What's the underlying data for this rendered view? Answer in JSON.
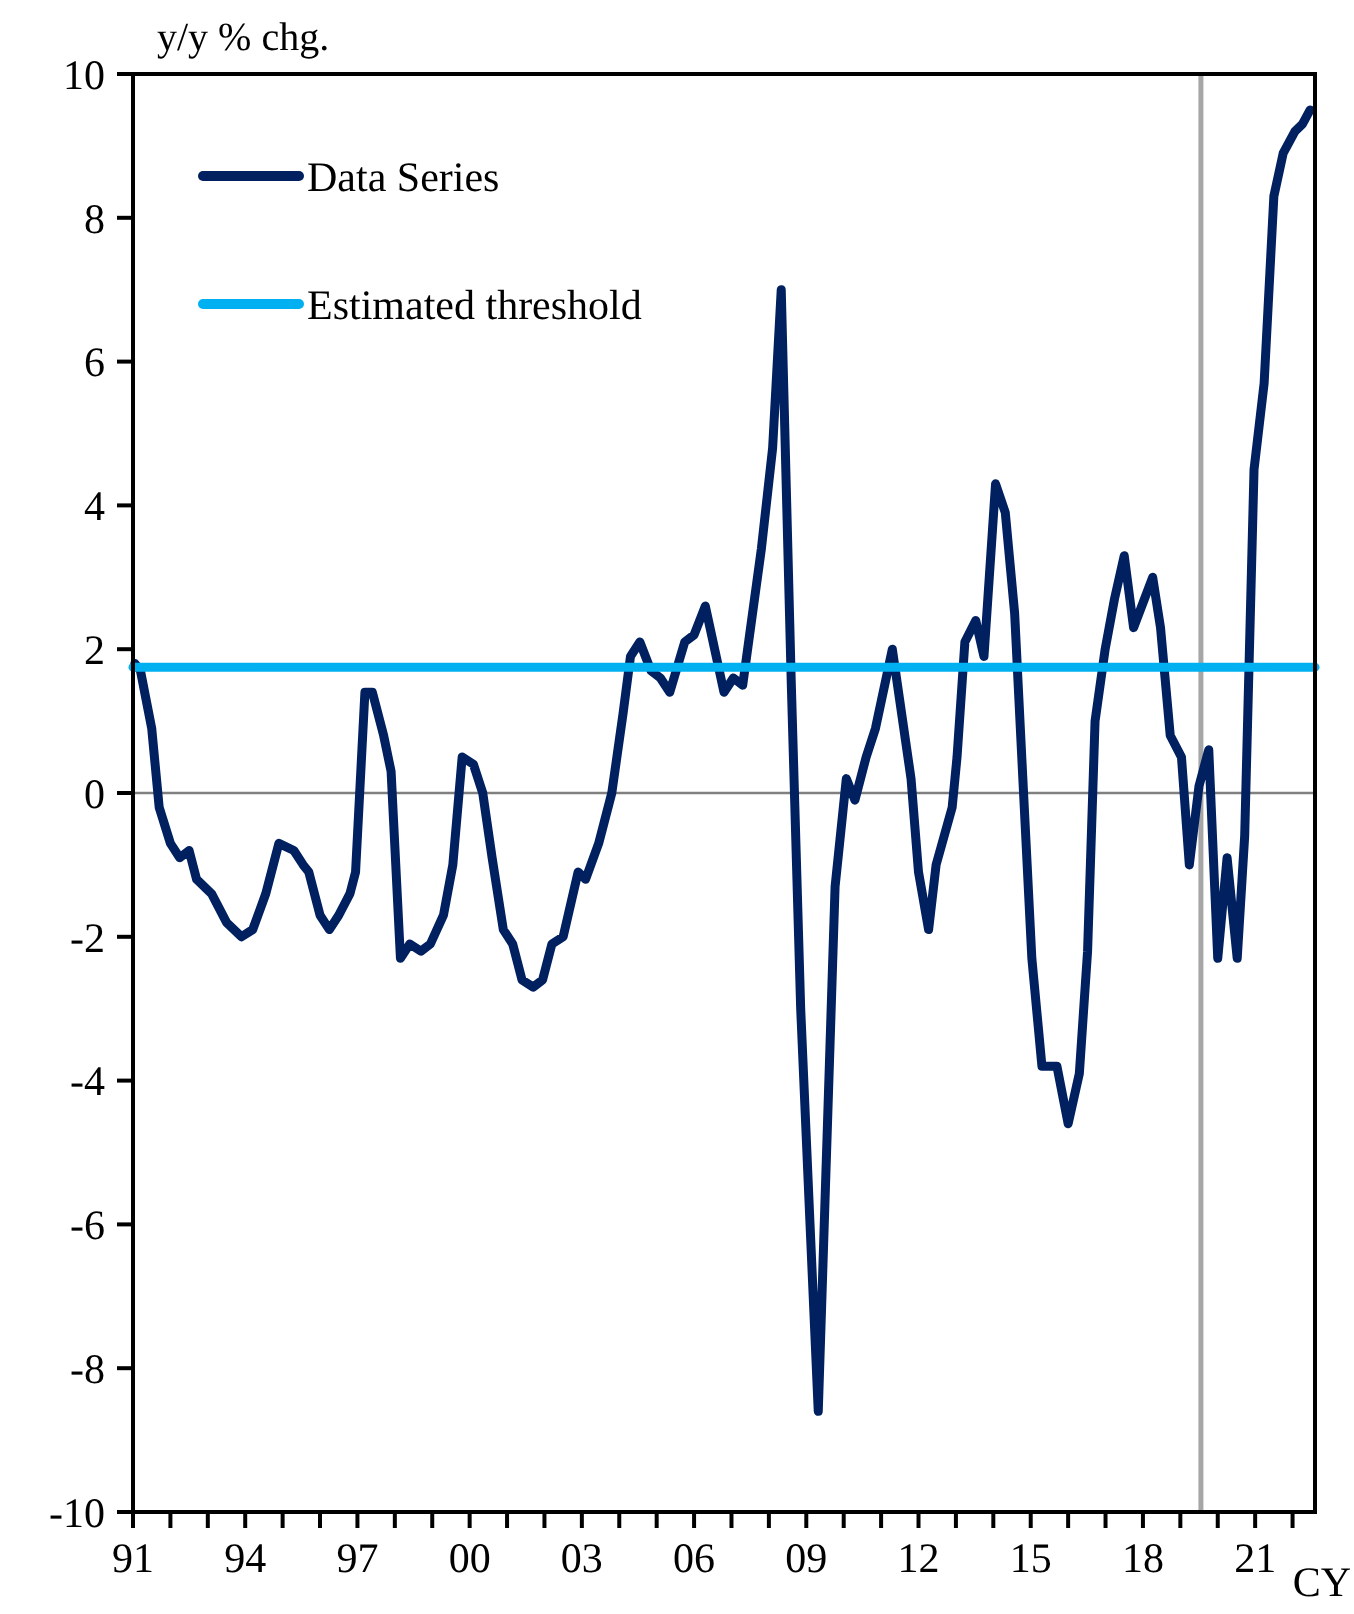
{
  "chart_data": {
    "type": "line",
    "ylabel": "y/y % chg.",
    "xlabel": "CY",
    "xlim": [
      1991,
      2022.6
    ],
    "ylim": [
      -10,
      10
    ],
    "yticks": [
      -10,
      -8,
      -6,
      -4,
      -2,
      0,
      2,
      4,
      6,
      8,
      10
    ],
    "xticks": [
      {
        "value": 1991,
        "label": "91"
      },
      {
        "value": 1992,
        "label": null
      },
      {
        "value": 1993,
        "label": null
      },
      {
        "value": 1994,
        "label": "94"
      },
      {
        "value": 1995,
        "label": null
      },
      {
        "value": 1996,
        "label": null
      },
      {
        "value": 1997,
        "label": "97"
      },
      {
        "value": 1998,
        "label": null
      },
      {
        "value": 1999,
        "label": null
      },
      {
        "value": 2000,
        "label": "00"
      },
      {
        "value": 2001,
        "label": null
      },
      {
        "value": 2002,
        "label": null
      },
      {
        "value": 2003,
        "label": "03"
      },
      {
        "value": 2004,
        "label": null
      },
      {
        "value": 2005,
        "label": null
      },
      {
        "value": 2006,
        "label": "06"
      },
      {
        "value": 2007,
        "label": null
      },
      {
        "value": 2008,
        "label": null
      },
      {
        "value": 2009,
        "label": "09"
      },
      {
        "value": 2010,
        "label": null
      },
      {
        "value": 2011,
        "label": null
      },
      {
        "value": 2012,
        "label": "12"
      },
      {
        "value": 2013,
        "label": null
      },
      {
        "value": 2014,
        "label": null
      },
      {
        "value": 2015,
        "label": "15"
      },
      {
        "value": 2016,
        "label": null
      },
      {
        "value": 2017,
        "label": null
      },
      {
        "value": 2018,
        "label": "18"
      },
      {
        "value": 2019,
        "label": null
      },
      {
        "value": 2020,
        "label": null
      },
      {
        "value": 2021,
        "label": "21"
      },
      {
        "value": 2022,
        "label": null
      }
    ],
    "grid": false,
    "legend": "top left",
    "ref_lines": [
      {
        "axis": "y",
        "value": 0,
        "color": "#808080"
      },
      {
        "axis": "x",
        "value": 2019.55,
        "color": "#a6a6a6"
      }
    ],
    "series": [
      {
        "name": "Data Series",
        "color": "#002060",
        "x": [
          1991.05,
          1991.2,
          1991.5,
          1991.7,
          1992.0,
          1992.25,
          1992.5,
          1992.7,
          1993.1,
          1993.5,
          1993.9,
          1994.2,
          1994.55,
          1994.9,
          1995.3,
          1995.55,
          1995.7,
          1996.0,
          1996.25,
          1996.5,
          1996.8,
          1996.95,
          1997.2,
          1997.4,
          1997.7,
          1997.9,
          1998.15,
          1998.4,
          1998.7,
          1998.95,
          1999.3,
          1999.55,
          1999.8,
          2000.1,
          2000.35,
          2000.6,
          2000.9,
          2001.15,
          2001.4,
          2001.7,
          2001.95,
          2002.2,
          2002.5,
          2002.9,
          2003.1,
          2003.45,
          2003.8,
          2004.1,
          2004.3,
          2004.55,
          2004.85,
          2005.1,
          2005.35,
          2005.75,
          2006.0,
          2006.3,
          2006.8,
          2007.05,
          2007.3,
          2007.8,
          2008.1,
          2008.33,
          2008.6,
          2008.85,
          2009.1,
          2009.32,
          2009.77,
          2010.07,
          2010.3,
          2010.6,
          2010.85,
          2011.3,
          2011.8,
          2012.0,
          2012.27,
          2012.47,
          2012.9,
          2013.03,
          2013.24,
          2013.53,
          2013.75,
          2014.06,
          2014.32,
          2014.57,
          2014.77,
          2015.03,
          2015.3,
          2015.7,
          2016.0,
          2016.3,
          2016.52,
          2016.72,
          2016.99,
          2017.24,
          2017.5,
          2017.75,
          2018.26,
          2018.47,
          2018.73,
          2019.03,
          2019.24,
          2019.5,
          2019.76,
          2020.0,
          2020.25,
          2020.52,
          2020.72,
          2020.97,
          2021.24,
          2021.5,
          2021.75,
          2022.06,
          2022.26,
          2022.47
        ],
        "values": [
          1.8,
          1.7,
          0.9,
          -0.2,
          -0.7,
          -0.9,
          -0.8,
          -1.2,
          -1.4,
          -1.8,
          -2.0,
          -1.9,
          -1.4,
          -0.7,
          -0.8,
          -1.0,
          -1.1,
          -1.7,
          -1.9,
          -1.7,
          -1.4,
          -1.1,
          1.4,
          1.4,
          0.8,
          0.3,
          -2.3,
          -2.1,
          -2.2,
          -2.1,
          -1.7,
          -1.0,
          0.5,
          0.4,
          0.0,
          -0.9,
          -1.9,
          -2.1,
          -2.6,
          -2.7,
          -2.6,
          -2.1,
          -2.0,
          -1.1,
          -1.2,
          -0.7,
          0.0,
          1.1,
          1.9,
          2.1,
          1.7,
          1.6,
          1.4,
          2.1,
          2.2,
          2.6,
          1.4,
          1.6,
          1.5,
          3.4,
          4.8,
          7.0,
          1.5,
          -3.0,
          -6.0,
          -8.6,
          -1.3,
          0.2,
          -0.1,
          0.5,
          0.9,
          2.0,
          0.2,
          -1.1,
          -1.9,
          -1.0,
          -0.2,
          0.5,
          2.1,
          2.4,
          1.9,
          4.3,
          3.9,
          2.5,
          0.4,
          -2.3,
          -3.8,
          -3.8,
          -4.6,
          -3.9,
          -2.2,
          1.0,
          2.0,
          2.7,
          3.3,
          2.3,
          3.0,
          2.3,
          0.8,
          0.5,
          -1.0,
          0.1,
          0.6,
          -2.3,
          -0.9,
          -2.3,
          -0.6,
          4.5,
          5.7,
          8.3,
          8.9,
          9.2,
          9.3,
          9.5
        ]
      },
      {
        "name": "Estimated threshold",
        "color": "#00b0f0",
        "x": [
          1991,
          2022.6
        ],
        "values": [
          1.75,
          1.75
        ]
      }
    ]
  }
}
